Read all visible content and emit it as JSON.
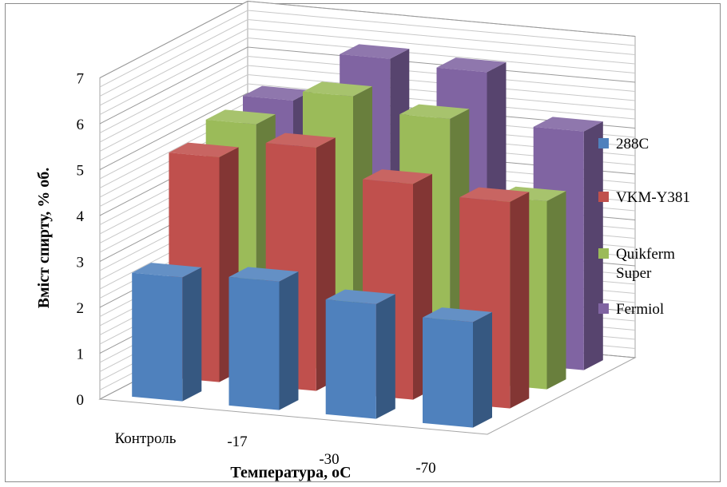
{
  "chart_data": {
    "type": "bar",
    "subtype": "3d-clustered-column",
    "categories": [
      "Контроль",
      "-17",
      "-30",
      "-70"
    ],
    "series": [
      {
        "name": "288C",
        "values": [
          2.7,
          2.8,
          2.5,
          2.3
        ],
        "color": "#4F81BD"
      },
      {
        "name": "VKM-Y381",
        "values": [
          4.9,
          5.3,
          4.7,
          4.5
        ],
        "color": "#C0504D"
      },
      {
        "name": "Quikferm Super",
        "values": [
          5.2,
          6.0,
          5.7,
          4.1
        ],
        "color": "#9BBB59"
      },
      {
        "name": "Fermiol",
        "values": [
          5.3,
          6.4,
          6.3,
          5.2
        ],
        "color": "#8064A2"
      }
    ],
    "xlabel": "Температура, оС",
    "ylabel": "Вміст спирту, % об.",
    "ylim": [
      0,
      7
    ],
    "yticks": [
      0,
      1,
      2,
      3,
      4,
      5,
      6,
      7
    ],
    "grid": true,
    "legend_position": "right"
  },
  "legend": {
    "items": [
      {
        "lines": [
          "288C"
        ],
        "color": "#4F81BD"
      },
      {
        "lines": [
          "VKM-Y381"
        ],
        "color": "#C0504D"
      },
      {
        "lines": [
          "Quikferm",
          "Super"
        ],
        "color": "#9BBB59"
      },
      {
        "lines": [
          "Fermiol"
        ],
        "color": "#8064A2"
      }
    ]
  }
}
